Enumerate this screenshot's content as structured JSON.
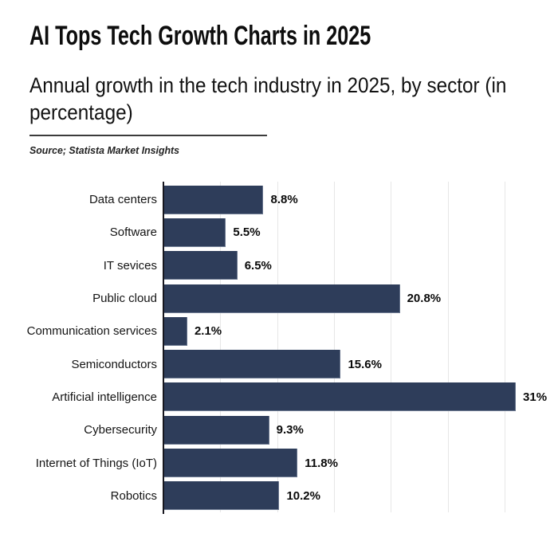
{
  "header": {
    "title": "AI Tops Tech Growth Charts in 2025",
    "subtitle": "Annual growth in the tech industry in 2025, by sector (in percentage)",
    "source": "Source; Statista Market Insights"
  },
  "colors": {
    "bar": "#2e3d5a",
    "axis": "#17171f",
    "gridline": "#e7e7e7",
    "background": "#ffffff",
    "title_text": "#0d0d0d",
    "value_label_text": "#0a0a0a"
  },
  "chart_data": {
    "type": "bar",
    "orientation": "horizontal",
    "title": "AI Tops Tech Growth Charts in 2025",
    "subtitle": "Annual growth in the tech industry in 2025, by sector (in percentage)",
    "source": "Source; Statista Market Insights",
    "xlabel": "",
    "ylabel": "",
    "categories": [
      "Data centers",
      "Software",
      "IT sevices",
      "Public cloud",
      "Communication services",
      "Semiconductors",
      "Artificial intelligence",
      "Cybersecurity",
      "Internet of Things (IoT)",
      "Robotics"
    ],
    "values": [
      8.8,
      5.5,
      6.5,
      20.8,
      2.1,
      15.6,
      31,
      9.3,
      11.8,
      10.2
    ],
    "value_labels": [
      "8.8%",
      "5.5%",
      "6.5%",
      "20.8%",
      "2.1%",
      "15.6%",
      "31%",
      "9.3%",
      "11.8%",
      "10.2%"
    ],
    "xlim": [
      0,
      34.4
    ],
    "gridlines_pct": [
      5,
      10,
      15,
      20,
      25,
      30
    ],
    "grid": "vertical-only",
    "legend": "none"
  }
}
